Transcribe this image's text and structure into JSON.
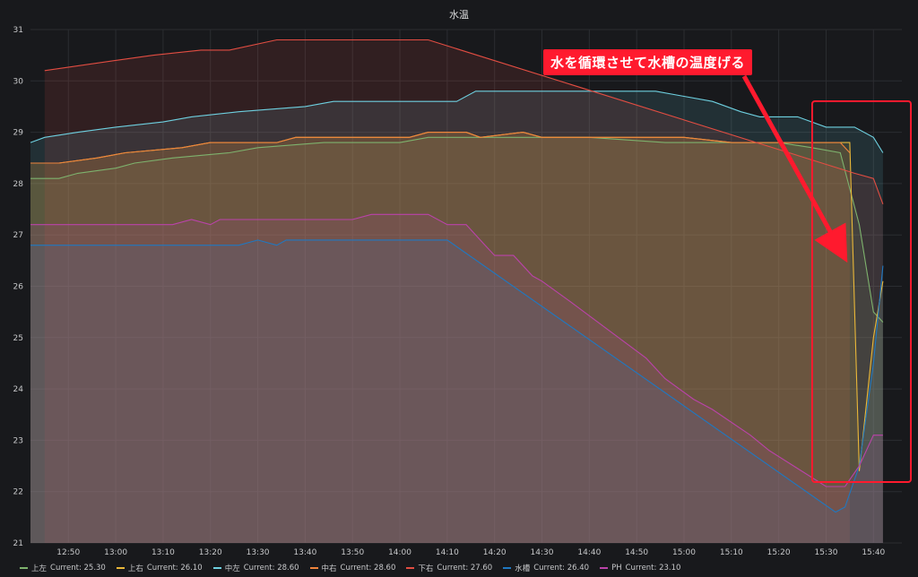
{
  "panel": {
    "title": "水温"
  },
  "annotation": {
    "text": "水を循環させて水槽の温度げる"
  },
  "chart_data": {
    "type": "area",
    "title": "水温",
    "xlabel": "",
    "ylabel": "",
    "ylim": [
      21,
      31
    ],
    "xlim": [
      "12:42",
      "15:46"
    ],
    "x_ticks": [
      "12:50",
      "13:00",
      "13:10",
      "13:20",
      "13:30",
      "13:40",
      "13:50",
      "14:00",
      "14:10",
      "14:20",
      "14:30",
      "14:40",
      "14:50",
      "15:00",
      "15:10",
      "15:20",
      "15:30",
      "15:40"
    ],
    "y_ticks": [
      21,
      22,
      23,
      24,
      25,
      26,
      27,
      28,
      29,
      30,
      31
    ],
    "grid": true,
    "legend_position": "bottom-left",
    "series": [
      {
        "name": "上左",
        "current": "Current: 25.30",
        "color": "#7eb26d",
        "points": [
          [
            "12:42",
            28.1
          ],
          [
            "12:45",
            28.1
          ],
          [
            "12:48",
            28.1
          ],
          [
            "12:52",
            28.2
          ],
          [
            "13:00",
            28.3
          ],
          [
            "13:04",
            28.4
          ],
          [
            "13:12",
            28.5
          ],
          [
            "13:24",
            28.6
          ],
          [
            "13:30",
            28.7
          ],
          [
            "13:44",
            28.8
          ],
          [
            "14:00",
            28.8
          ],
          [
            "14:06",
            28.9
          ],
          [
            "14:20",
            28.9
          ],
          [
            "14:40",
            28.9
          ],
          [
            "14:56",
            28.8
          ],
          [
            "15:10",
            28.8
          ],
          [
            "15:20",
            28.8
          ],
          [
            "15:27",
            28.7
          ],
          [
            "15:33",
            28.6
          ],
          [
            "15:37",
            27.2
          ],
          [
            "15:40",
            25.5
          ],
          [
            "15:42",
            25.3
          ]
        ]
      },
      {
        "name": "上右",
        "current": "Current: 26.10",
        "color": "#eab839",
        "points": [
          [
            "12:42",
            28.4
          ],
          [
            "12:48",
            28.4
          ],
          [
            "12:56",
            28.5
          ],
          [
            "13:02",
            28.6
          ],
          [
            "13:14",
            28.7
          ],
          [
            "13:20",
            28.8
          ],
          [
            "13:34",
            28.8
          ],
          [
            "13:38",
            28.9
          ],
          [
            "14:02",
            28.9
          ],
          [
            "14:06",
            29.0
          ],
          [
            "14:14",
            29.0
          ],
          [
            "14:17",
            28.9
          ],
          [
            "14:26",
            29.0
          ],
          [
            "14:30",
            28.9
          ],
          [
            "15:00",
            28.9
          ],
          [
            "15:10",
            28.8
          ],
          [
            "15:33",
            28.8
          ],
          [
            "15:35",
            28.8
          ],
          [
            "15:37",
            22.4
          ],
          [
            "15:40",
            25.0
          ],
          [
            "15:42",
            26.1
          ]
        ]
      },
      {
        "name": "中左",
        "current": "Current: 28.60",
        "color": "#6ed0e0",
        "points": [
          [
            "12:42",
            28.8
          ],
          [
            "12:45",
            28.9
          ],
          [
            "12:52",
            29.0
          ],
          [
            "13:00",
            29.1
          ],
          [
            "13:10",
            29.2
          ],
          [
            "13:16",
            29.3
          ],
          [
            "13:26",
            29.4
          ],
          [
            "13:40",
            29.5
          ],
          [
            "13:46",
            29.6
          ],
          [
            "14:12",
            29.6
          ],
          [
            "14:16",
            29.8
          ],
          [
            "14:54",
            29.8
          ],
          [
            "15:00",
            29.7
          ],
          [
            "15:06",
            29.6
          ],
          [
            "15:12",
            29.4
          ],
          [
            "15:16",
            29.3
          ],
          [
            "15:24",
            29.3
          ],
          [
            "15:30",
            29.1
          ],
          [
            "15:36",
            29.1
          ],
          [
            "15:40",
            28.9
          ],
          [
            "15:42",
            28.6
          ]
        ]
      },
      {
        "name": "中右",
        "current": "Current: 28.60",
        "color": "#ef843c",
        "points": [
          [
            "12:42",
            28.4
          ],
          [
            "12:48",
            28.4
          ],
          [
            "12:56",
            28.5
          ],
          [
            "13:02",
            28.6
          ],
          [
            "13:14",
            28.7
          ],
          [
            "13:20",
            28.8
          ],
          [
            "13:34",
            28.8
          ],
          [
            "13:38",
            28.9
          ],
          [
            "14:02",
            28.9
          ],
          [
            "14:06",
            29.0
          ],
          [
            "14:14",
            29.0
          ],
          [
            "14:17",
            28.9
          ],
          [
            "14:26",
            29.0
          ],
          [
            "14:30",
            28.9
          ],
          [
            "15:00",
            28.9
          ],
          [
            "15:10",
            28.8
          ],
          [
            "15:33",
            28.8
          ],
          [
            "15:35",
            28.6
          ]
        ]
      },
      {
        "name": "下右",
        "current": "Current: 27.60",
        "color": "#e24d42",
        "points": [
          [
            "12:45",
            30.2
          ],
          [
            "13:00",
            30.4
          ],
          [
            "13:08",
            30.5
          ],
          [
            "13:18",
            30.6
          ],
          [
            "13:24",
            30.6
          ],
          [
            "13:34",
            30.8
          ],
          [
            "14:06",
            30.8
          ],
          [
            "15:36",
            28.2
          ],
          [
            "15:40",
            28.1
          ],
          [
            "15:42",
            27.6
          ]
        ]
      },
      {
        "name": "水槽",
        "current": "Current: 26.40",
        "color": "#1f78c1",
        "points": [
          [
            "12:42",
            26.8
          ],
          [
            "13:26",
            26.8
          ],
          [
            "13:30",
            26.9
          ],
          [
            "13:34",
            26.8
          ],
          [
            "13:36",
            26.9
          ],
          [
            "14:10",
            26.9
          ],
          [
            "15:32",
            21.6
          ],
          [
            "15:34",
            21.7
          ],
          [
            "15:37",
            22.5
          ],
          [
            "15:40",
            24.5
          ],
          [
            "15:42",
            26.4
          ]
        ]
      },
      {
        "name": "PH",
        "current": "Current: 23.10",
        "color": "#ba43a9",
        "points": [
          [
            "12:42",
            27.2
          ],
          [
            "13:12",
            27.2
          ],
          [
            "13:16",
            27.3
          ],
          [
            "13:20",
            27.2
          ],
          [
            "13:22",
            27.3
          ],
          [
            "13:50",
            27.3
          ],
          [
            "13:54",
            27.4
          ],
          [
            "14:06",
            27.4
          ],
          [
            "14:10",
            27.2
          ],
          [
            "14:14",
            27.2
          ],
          [
            "14:18",
            26.8
          ],
          [
            "14:20",
            26.6
          ],
          [
            "14:24",
            26.6
          ],
          [
            "14:28",
            26.2
          ],
          [
            "14:30",
            26.1
          ],
          [
            "14:36",
            25.7
          ],
          [
            "14:52",
            24.6
          ],
          [
            "14:56",
            24.2
          ],
          [
            "15:02",
            23.8
          ],
          [
            "15:06",
            23.6
          ],
          [
            "15:14",
            23.1
          ],
          [
            "15:18",
            22.8
          ],
          [
            "15:30",
            22.1
          ],
          [
            "15:34",
            22.1
          ],
          [
            "15:37",
            22.5
          ],
          [
            "15:40",
            23.1
          ],
          [
            "15:42",
            23.1
          ]
        ]
      }
    ]
  }
}
